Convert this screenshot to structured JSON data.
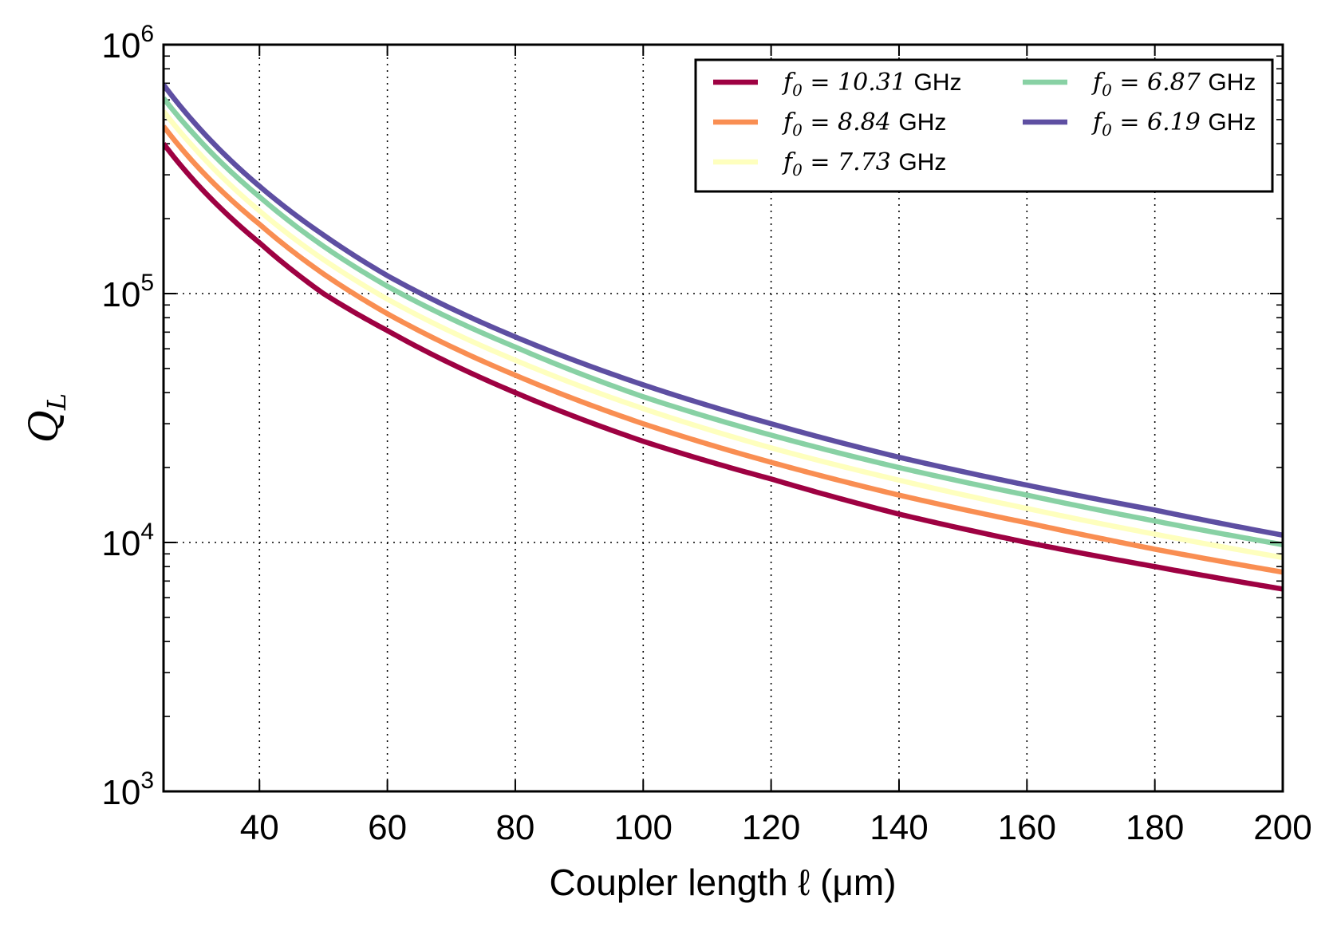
{
  "chart_data": {
    "type": "line",
    "xlabel": "Coupler length ℓ (μm)",
    "ylabel": "Q_L",
    "ylabel_main": "Q",
    "ylabel_sub": "L",
    "x_scale": "linear",
    "y_scale": "log",
    "xlim": [
      25,
      200
    ],
    "ylim": [
      1000,
      1000000
    ],
    "x_ticks": [
      40,
      60,
      80,
      100,
      120,
      140,
      160,
      180,
      200
    ],
    "x_tick_labels": [
      "40",
      "60",
      "80",
      "100",
      "120",
      "140",
      "160",
      "180",
      "200"
    ],
    "y_ticks": [
      1000,
      10000,
      100000,
      1000000
    ],
    "y_tick_labels": [
      {
        "base": "10",
        "exp": "3"
      },
      {
        "base": "10",
        "exp": "4"
      },
      {
        "base": "10",
        "exp": "5"
      },
      {
        "base": "10",
        "exp": "6"
      }
    ],
    "grid": true,
    "legend_position": "top-right",
    "x": [
      25,
      30,
      40,
      50,
      60,
      80,
      100,
      120,
      140,
      160,
      180,
      200
    ],
    "series": [
      {
        "name": "f0 = 10.31 GHz",
        "legend_math": "f",
        "legend_sub": "0",
        "legend_eq": "= 10.31",
        "legend_unit": "GHz",
        "color": "#9e0142",
        "values": [
          400000,
          280000,
          160000,
          100000,
          71000,
          40000,
          25500,
          18000,
          13000,
          10000,
          8000,
          6500
        ]
      },
      {
        "name": "f0 = 8.84 GHz",
        "legend_math": "f",
        "legend_sub": "0",
        "legend_eq": "= 8.84",
        "legend_unit": "GHz",
        "color": "#f98e52",
        "values": [
          470000,
          330000,
          190000,
          120000,
          83000,
          47000,
          30000,
          21000,
          15500,
          12000,
          9400,
          7600
        ]
      },
      {
        "name": "f0 = 7.73 GHz",
        "legend_math": "f",
        "legend_sub": "0",
        "legend_eq": "= 7.73",
        "legend_unit": "GHz",
        "color": "#feffbe",
        "values": [
          540000,
          380000,
          215000,
          137000,
          95000,
          54000,
          34500,
          24000,
          17800,
          13700,
          10800,
          8700
        ]
      },
      {
        "name": "f0 = 6.87 GHz",
        "legend_math": "f",
        "legend_sub": "0",
        "legend_eq": "= 6.87",
        "legend_unit": "GHz",
        "color": "#88d1a4",
        "values": [
          610000,
          430000,
          245000,
          155000,
          107000,
          61000,
          38500,
          27000,
          20000,
          15500,
          12200,
          9800
        ]
      },
      {
        "name": "f0 = 6.19 GHz",
        "legend_math": "f",
        "legend_sub": "0",
        "legend_eq": "= 6.19",
        "legend_unit": "GHz",
        "color": "#5e4fa2",
        "values": [
          690000,
          480000,
          270000,
          172000,
          118000,
          67000,
          43000,
          30000,
          22000,
          17000,
          13500,
          10700
        ]
      }
    ]
  }
}
